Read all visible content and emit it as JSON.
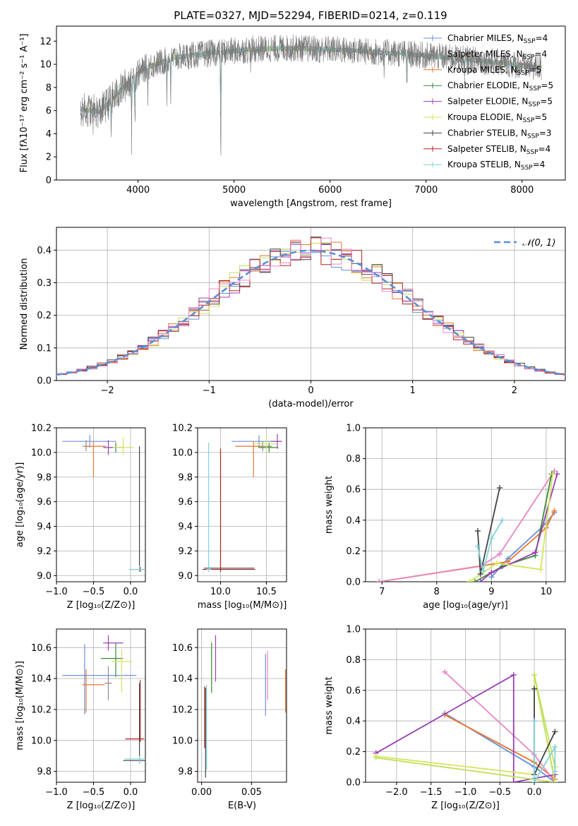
{
  "figure": {
    "title": "PLATE=0327, MJD=52294, FIBERID=0214, z=0.119"
  },
  "palette": {
    "chabrier_miles": "#6a8fdc",
    "salpeter_miles": "#8c8c8c",
    "kroupa_miles": "#e8772e",
    "chabrier_elodie": "#3a8a3a",
    "salpeter_elodie": "#9a3fb5",
    "kroupa_elodie": "#d6e45a",
    "chabrier_stelib": "#444444",
    "salpeter_stelib": "#b52020",
    "kroupa_stelib": "#7fd4dc",
    "kroupa_miles_weights": "#e887c2",
    "chabrier_elodie_hist": "#c2e05a",
    "grid": "#b0b0b0",
    "gaussian": "#5b8fd8"
  },
  "chart_data": [
    {
      "id": "spectrum",
      "type": "line",
      "xlabel": "wavelength [Angstrom, rest frame]",
      "ylabel": "Flux [fλ10⁻¹⁷ erg cm⁻² s⁻¹ A⁻¹]",
      "xlim": [
        3150,
        8450
      ],
      "ylim": [
        0,
        13.3
      ],
      "xticks": [
        4000,
        5000,
        6000,
        7000,
        8000
      ],
      "yticks": [
        0,
        2,
        4,
        6,
        8,
        10,
        12
      ],
      "legend": [
        {
          "label": "Chabrier MILES, N",
          "sub": "SSP",
          "tail": "=4",
          "color": "chabrier_miles"
        },
        {
          "label": "Salpeter MILES, N",
          "sub": "SSP",
          "tail": "=4",
          "color": "salpeter_miles"
        },
        {
          "label": "Kroupa MILES, N",
          "sub": "SSP",
          "tail": "=5",
          "color": "kroupa_miles"
        },
        {
          "label": "Chabrier ELODIE, N",
          "sub": "SSP",
          "tail": "=5",
          "color": "chabrier_elodie"
        },
        {
          "label": "Salpeter ELODIE, N",
          "sub": "SSP",
          "tail": "=5",
          "color": "salpeter_elodie"
        },
        {
          "label": "Kroupa ELODIE, N",
          "sub": "SSP",
          "tail": "=5",
          "color": "kroupa_elodie"
        },
        {
          "label": "Chabrier STELIB, N",
          "sub": "SSP",
          "tail": "=3",
          "color": "chabrier_stelib"
        },
        {
          "label": "Salpeter STELIB, N",
          "sub": "SSP",
          "tail": "=4",
          "color": "salpeter_stelib"
        },
        {
          "label": "Kroupa STELIB, N",
          "sub": "SSP",
          "tail": "=4",
          "color": "kroupa_stelib"
        }
      ],
      "continuum": [
        [
          3400,
          6.1
        ],
        [
          3600,
          5.9
        ],
        [
          3800,
          7.6
        ],
        [
          3950,
          8.9
        ],
        [
          4100,
          9.8
        ],
        [
          4400,
          10.6
        ],
        [
          4800,
          11.0
        ],
        [
          5200,
          11.3
        ],
        [
          5600,
          11.4
        ],
        [
          6000,
          11.3
        ],
        [
          6400,
          11.1
        ],
        [
          6800,
          10.9
        ],
        [
          7200,
          10.6
        ],
        [
          7600,
          10.3
        ],
        [
          8200,
          9.7
        ]
      ],
      "absorption": [
        [
          3530,
          1.0
        ],
        [
          3720,
          3.2
        ],
        [
          3933,
          5.6
        ],
        [
          3968,
          4.2
        ],
        [
          4101,
          3.0
        ],
        [
          4300,
          3.0
        ],
        [
          4340,
          3.2
        ],
        [
          4861,
          10.6
        ],
        [
          5175,
          1.5
        ],
        [
          5890,
          1.2
        ],
        [
          6563,
          1.5
        ],
        [
          6800,
          3.0
        ],
        [
          7400,
          2.0
        ]
      ],
      "range": [
        3400,
        8200
      ]
    },
    {
      "id": "residuals",
      "type": "step",
      "xlabel": "(data-model)/error",
      "ylabel": "Normed distribution",
      "xlim": [
        -2.5,
        2.5
      ],
      "ylim": [
        0,
        0.47
      ],
      "xticks": [
        -2,
        -1,
        0,
        1,
        2
      ],
      "yticks": [
        0.0,
        0.1,
        0.2,
        0.3,
        0.4
      ],
      "bin_width": 0.1,
      "legend_label": "𝒩(0, 1)"
    },
    {
      "id": "age_vs_Z",
      "type": "errorbar",
      "xlabel": "Z [log₁₀(Z/Z⊙)]",
      "ylabel": "age  [log₁₀(age/yr)]",
      "xlim": [
        -1.0,
        0.2
      ],
      "ylim": [
        8.95,
        10.2
      ],
      "xticks": [
        -1.0,
        -0.5,
        0.0
      ],
      "yticks": [
        9.0,
        9.2,
        9.4,
        9.6,
        9.8,
        10.0,
        10.2
      ],
      "points": [
        {
          "x": -0.55,
          "xerr": [
            0.37,
            0.36
          ],
          "y": 10.09,
          "yerr": [
            0.05,
            0.05
          ],
          "color": "chabrier_miles"
        },
        {
          "x": -0.6,
          "xerr": [
            0.05,
            0.05
          ],
          "y": 10.05,
          "yerr": [
            0.04,
            0.05
          ],
          "color": "salpeter_miles"
        },
        {
          "x": -0.5,
          "xerr": [
            0.12,
            0.17
          ],
          "y": 10.05,
          "yerr": [
            0.25,
            0.04
          ],
          "color": "kroupa_miles"
        },
        {
          "x": -0.2,
          "xerr": [
            0.07,
            0.1
          ],
          "y": 10.04,
          "yerr": [
            0.04,
            0.04
          ],
          "color": "chabrier_elodie"
        },
        {
          "x": -0.3,
          "xerr": [
            0.07,
            0.12
          ],
          "y": 10.04,
          "yerr": [
            0.06,
            0.06
          ],
          "color": "salpeter_elodie"
        },
        {
          "x": -0.1,
          "xerr": [
            0.14,
            0.14
          ],
          "y": 10.04,
          "yerr": [
            0.06,
            0.08
          ],
          "color": "kroupa_elodie"
        },
        {
          "x": 0.12,
          "xerr": [
            0.12,
            0.09
          ],
          "y": 9.05,
          "yerr": [
            0.02,
            1.0
          ],
          "color": "chabrier_stelib"
        },
        {
          "x": 0.13,
          "xerr": [
            0.02,
            0.02
          ],
          "y": 9.05,
          "yerr": [
            0.02,
            0.02
          ],
          "color": "salpeter_stelib"
        },
        {
          "x": 0.12,
          "xerr": [
            0.14,
            0.08
          ],
          "y": 9.05,
          "yerr": [
            0.02,
            0.03
          ],
          "color": "kroupa_stelib"
        }
      ]
    },
    {
      "id": "age_vs_mass",
      "type": "errorbar",
      "xlabel": "mass [log₁₀(M/M⊙)]",
      "ylabel": "",
      "xlim": [
        9.75,
        10.72
      ],
      "ylim": [
        8.95,
        10.2
      ],
      "xticks": [
        10.0,
        10.5
      ],
      "yticks": [
        9.0,
        9.2,
        9.4,
        9.6,
        9.8,
        10.0,
        10.2
      ],
      "points": [
        {
          "x": 10.42,
          "xerr": [
            0.3,
            0.25
          ],
          "y": 10.09,
          "yerr": [
            0.05,
            0.05
          ],
          "color": "chabrier_miles"
        },
        {
          "x": 10.46,
          "xerr": [
            0.1,
            0.1
          ],
          "y": 10.05,
          "yerr": [
            0.04,
            0.04
          ],
          "color": "salpeter_miles"
        },
        {
          "x": 10.36,
          "xerr": [
            0.2,
            0.1
          ],
          "y": 10.05,
          "yerr": [
            0.25,
            0.04
          ],
          "color": "kroupa_miles"
        },
        {
          "x": 10.53,
          "xerr": [
            0.12,
            0.1
          ],
          "y": 10.04,
          "yerr": [
            0.04,
            0.04
          ],
          "color": "chabrier_elodie"
        },
        {
          "x": 10.62,
          "xerr": [
            0.07,
            0.05
          ],
          "y": 10.09,
          "yerr": [
            0.06,
            0.06
          ],
          "color": "salpeter_elodie"
        },
        {
          "x": 10.5,
          "xerr": [
            0.15,
            0.12
          ],
          "y": 10.07,
          "yerr": [
            0.06,
            0.06
          ],
          "color": "kroupa_elodie"
        },
        {
          "x": 9.87,
          "xerr": [
            0.05,
            0.5
          ],
          "y": 9.06,
          "yerr": [
            0.02,
            0.02
          ],
          "color": "chabrier_stelib"
        },
        {
          "x": 10.0,
          "xerr": [
            0.2,
            0.38
          ],
          "y": 9.05,
          "yerr": [
            0.02,
            0.98
          ],
          "color": "salpeter_stelib"
        },
        {
          "x": 9.87,
          "xerr": [
            0.02,
            0.03
          ],
          "y": 9.05,
          "yerr": [
            0.02,
            1.03
          ],
          "color": "kroupa_stelib"
        }
      ]
    },
    {
      "id": "mass_weight_vs_age",
      "type": "line",
      "xlabel": "age  [log₁₀(age/yr)]",
      "ylabel": "mass weight",
      "xlim": [
        6.7,
        10.35
      ],
      "ylim": [
        0,
        1
      ],
      "xticks": [
        7,
        8,
        9,
        10
      ],
      "yticks": [
        0.0,
        0.2,
        0.4,
        0.6,
        0.8,
        1.0
      ],
      "series": [
        {
          "color": "chabrier_miles",
          "x": [
            9.0,
            9.3,
            10.0,
            10.15
          ],
          "y": [
            0.03,
            0.15,
            0.38,
            0.45
          ]
        },
        {
          "color": "kroupa_miles",
          "x": [
            6.95,
            9.3,
            10.0,
            10.15
          ],
          "y": [
            0.0,
            0.13,
            0.35,
            0.46
          ]
        },
        {
          "color": "kroupa_miles_weights",
          "x": [
            6.95,
            8.8,
            9.15,
            10.15
          ],
          "y": [
            0.0,
            0.1,
            0.18,
            0.72
          ]
        },
        {
          "color": "chabrier_elodie",
          "x": [
            8.7,
            9.2,
            9.8,
            10.1
          ],
          "y": [
            0.0,
            0.1,
            0.17,
            0.7
          ]
        },
        {
          "color": "salpeter_elodie",
          "x": [
            8.8,
            9.0,
            9.8,
            10.2
          ],
          "y": [
            0.0,
            0.06,
            0.19,
            0.7
          ]
        },
        {
          "color": "kroupa_elodie",
          "x": [
            8.6,
            9.1,
            9.9,
            10.12
          ],
          "y": [
            0.0,
            0.12,
            0.08,
            0.7
          ]
        },
        {
          "color": "chabrier_stelib",
          "x": [
            8.75,
            8.8,
            9.15
          ],
          "y": [
            0.33,
            0.05,
            0.61
          ]
        },
        {
          "color": "kroupa_stelib",
          "x": [
            8.75,
            8.85,
            9.0,
            9.2
          ],
          "y": [
            0.23,
            0.07,
            0.28,
            0.4
          ]
        }
      ]
    },
    {
      "id": "mass_vs_Z",
      "type": "errorbar",
      "xlabel": "Z [log₁₀(Z/Z⊙)]",
      "ylabel": "mass [log₁₀(M/M⊙)]",
      "xlim": [
        -1.0,
        0.2
      ],
      "ylim": [
        9.73,
        10.72
      ],
      "xticks": [
        -1.0,
        -0.5,
        0.0
      ],
      "yticks": [
        9.8,
        10.0,
        10.2,
        10.4,
        10.6
      ],
      "points": [
        {
          "x": -0.62,
          "xerr": [
            0.3,
            0.7
          ],
          "y": 10.42,
          "yerr": [
            0.25,
            0.2
          ],
          "color": "chabrier_miles"
        },
        {
          "x": -0.3,
          "xerr": [
            0.05,
            0.05
          ],
          "y": 10.37,
          "yerr": [
            0.11,
            0.11
          ],
          "color": "salpeter_miles"
        },
        {
          "x": -0.6,
          "xerr": [
            0.05,
            0.25
          ],
          "y": 10.36,
          "yerr": [
            0.18,
            0.1
          ],
          "color": "kroupa_miles"
        },
        {
          "x": -0.2,
          "xerr": [
            0.2,
            0.1
          ],
          "y": 10.53,
          "yerr": [
            0.12,
            0.1
          ],
          "color": "chabrier_elodie"
        },
        {
          "x": -0.3,
          "xerr": [
            0.07,
            0.2
          ],
          "y": 10.63,
          "yerr": [
            0.05,
            0.05
          ],
          "color": "salpeter_elodie"
        },
        {
          "x": -0.12,
          "xerr": [
            0.14,
            0.14
          ],
          "y": 10.51,
          "yerr": [
            0.2,
            0.08
          ],
          "color": "kroupa_elodie"
        },
        {
          "x": 0.12,
          "xerr": [
            0.22,
            0.1
          ],
          "y": 9.87,
          "yerr": [
            0.02,
            0.5
          ],
          "color": "chabrier_stelib"
        },
        {
          "x": 0.13,
          "xerr": [
            0.2,
            0.05
          ],
          "y": 10.01,
          "yerr": [
            0.02,
            0.38
          ],
          "color": "salpeter_stelib"
        },
        {
          "x": 0.12,
          "xerr": [
            0.2,
            0.08
          ],
          "y": 9.88,
          "yerr": [
            0.03,
            0.02
          ],
          "color": "kroupa_stelib"
        }
      ]
    },
    {
      "id": "mass_vs_ebv",
      "type": "errorbar",
      "xlabel": "E(B-V)",
      "ylabel": "",
      "xlim": [
        -0.004,
        0.085
      ],
      "ylim": [
        9.73,
        10.72
      ],
      "xticks": [
        0.0,
        0.05
      ],
      "yticks": [
        9.8,
        10.0,
        10.2,
        10.4,
        10.6
      ],
      "points": [
        {
          "x": 0.003,
          "y": 10.15,
          "yerr": [
            0.2,
            0.2
          ],
          "color": "salpeter_stelib"
        },
        {
          "x": 0.004,
          "y": 10.06,
          "yerr": [
            0.3,
            0.28
          ],
          "color": "chabrier_stelib"
        },
        {
          "x": 0.005,
          "y": 10.06,
          "yerr": [
            0.25,
            0.3
          ],
          "color": "kroupa_stelib"
        },
        {
          "x": 0.01,
          "y": 10.46,
          "yerr": [
            0.16,
            0.18
          ],
          "color": "kroupa_elodie"
        },
        {
          "x": 0.01,
          "y": 10.46,
          "yerr": [
            0.15,
            0.17
          ],
          "color": "chabrier_elodie"
        },
        {
          "x": 0.014,
          "y": 10.53,
          "yerr": [
            0.15,
            0.15
          ],
          "color": "salpeter_elodie"
        },
        {
          "x": 0.064,
          "y": 10.41,
          "yerr": [
            0.25,
            0.15
          ],
          "color": "chabrier_miles"
        },
        {
          "x": 0.066,
          "y": 10.42,
          "yerr": [
            0.16,
            0.16
          ],
          "color": "kroupa_miles_weights"
        },
        {
          "x": 0.084,
          "y": 10.32,
          "yerr": [
            0.14,
            0.14
          ],
          "color": "kroupa_miles"
        }
      ]
    },
    {
      "id": "mass_weight_vs_Z",
      "type": "line",
      "xlabel": "Z [log₁₀(Z/Z⊙)]",
      "ylabel": "mass weight",
      "xlim": [
        -2.45,
        0.45
      ],
      "ylim": [
        0,
        1
      ],
      "xticks": [
        -2.0,
        -1.5,
        -1.0,
        -0.5,
        0.0
      ],
      "yticks": [
        0.0,
        0.2,
        0.4,
        0.6,
        0.8,
        1.0
      ],
      "series": [
        {
          "color": "chabrier_miles",
          "x": [
            -1.3,
            0.0,
            0.3
          ],
          "y": [
            0.45,
            0.1,
            0.0
          ]
        },
        {
          "color": "kroupa_miles",
          "x": [
            -1.3,
            0.0,
            0.3
          ],
          "y": [
            0.44,
            0.13,
            0.02
          ]
        },
        {
          "color": "kroupa_miles_weights",
          "x": [
            -1.3,
            0.0,
            0.3
          ],
          "y": [
            0.72,
            0.18,
            0.0
          ]
        },
        {
          "color": "salpeter_elodie",
          "x": [
            -2.3,
            -0.3,
            -0.3,
            0.3
          ],
          "y": [
            0.19,
            0.7,
            0.0,
            0.05
          ]
        },
        {
          "color": "kroupa_elodie",
          "x": [
            -2.3,
            0.0,
            0.0,
            0.3
          ],
          "y": [
            0.17,
            0.05,
            0.7,
            0.0
          ]
        },
        {
          "color": "chabrier_elodie_hist",
          "x": [
            -2.3,
            0.3,
            0.0,
            0.3
          ],
          "y": [
            0.16,
            0.0,
            0.7,
            0.1
          ]
        },
        {
          "color": "chabrier_stelib",
          "x": [
            0.0,
            0.0,
            0.3
          ],
          "y": [
            0.61,
            0.05,
            0.33
          ]
        },
        {
          "color": "kroupa_stelib",
          "x": [
            0.0,
            0.0,
            0.3,
            0.3
          ],
          "y": [
            0.4,
            0.0,
            0.23,
            0.07
          ]
        }
      ]
    }
  ]
}
